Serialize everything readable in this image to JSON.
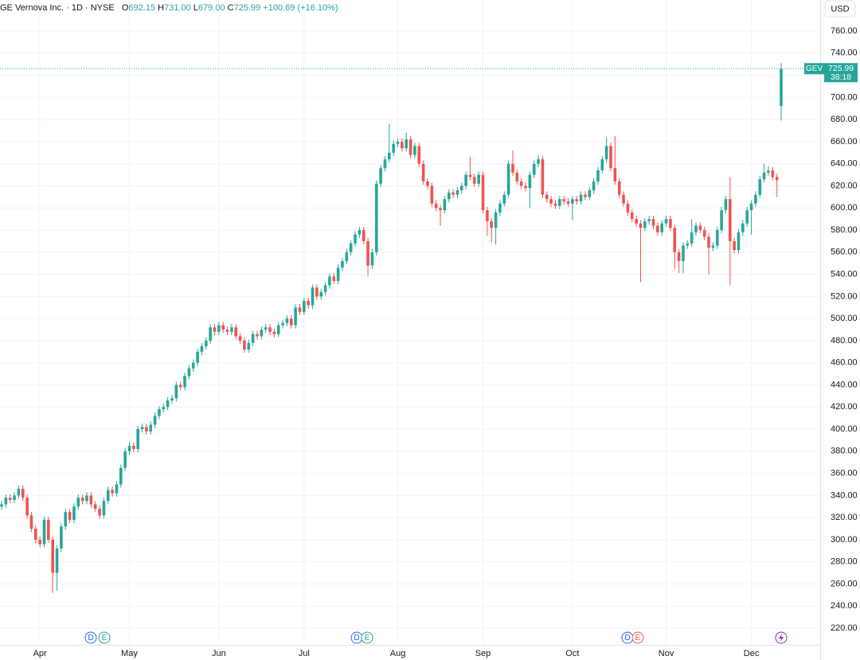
{
  "chart_data": {
    "type": "candlestick",
    "title": "GE Vernova Inc. · 1D · NYSE",
    "ohlc_labels": [
      "O",
      "H",
      "L",
      "C"
    ],
    "last_labels": [
      "692.15",
      "731.00",
      "679.00",
      "725.99"
    ],
    "change_label": "+100.69 (+16.10%)",
    "currency": "USD",
    "symbol": "GEV",
    "countdown": "38:18",
    "up_color": "#26a69a",
    "down_color": "#ef5350",
    "grid": true,
    "ylim": [
      204.9,
      788.1
    ],
    "yticks": [
      {
        "value": 220,
        "label": "220.00"
      },
      {
        "value": 240,
        "label": "240.00"
      },
      {
        "value": 260,
        "label": "260.00"
      },
      {
        "value": 280,
        "label": "280.00"
      },
      {
        "value": 300,
        "label": "300.00"
      },
      {
        "value": 320,
        "label": "320.00"
      },
      {
        "value": 340,
        "label": "340.00"
      },
      {
        "value": 360,
        "label": "360.00"
      },
      {
        "value": 380,
        "label": "380.00"
      },
      {
        "value": 400,
        "label": "400.00"
      },
      {
        "value": 420,
        "label": "420.00"
      },
      {
        "value": 440,
        "label": "440.00"
      },
      {
        "value": 460,
        "label": "460.00"
      },
      {
        "value": 480,
        "label": "480.00"
      },
      {
        "value": 500,
        "label": "500.00"
      },
      {
        "value": 520,
        "label": "520.00"
      },
      {
        "value": 540,
        "label": "540.00"
      },
      {
        "value": 560,
        "label": "560.00"
      },
      {
        "value": 580,
        "label": "580.00"
      },
      {
        "value": 600,
        "label": "600.00"
      },
      {
        "value": 620,
        "label": "620.00"
      },
      {
        "value": 640,
        "label": "640.00"
      },
      {
        "value": 660,
        "label": "660.00"
      },
      {
        "value": 680,
        "label": "680.00"
      },
      {
        "value": 700,
        "label": "700.00"
      },
      {
        "value": 720,
        "label": "720.00"
      },
      {
        "value": 740,
        "label": "740.00"
      },
      {
        "value": 760,
        "label": "760.00"
      }
    ],
    "events": [
      [
        "D",
        "E"
      ],
      [
        "D",
        "E"
      ],
      [
        "D",
        "E"
      ]
    ],
    "categories": [
      null,
      null,
      null,
      null,
      null,
      null,
      null,
      null,
      null,
      "Apr",
      null,
      null,
      null,
      null,
      null,
      null,
      null,
      null,
      null,
      null,
      null,
      null,
      null,
      null,
      null,
      null,
      null,
      null,
      null,
      null,
      "May",
      null,
      null,
      null,
      null,
      null,
      null,
      null,
      null,
      null,
      null,
      null,
      null,
      null,
      null,
      null,
      null,
      null,
      null,
      null,
      null,
      "Jun",
      null,
      null,
      null,
      null,
      null,
      null,
      null,
      null,
      null,
      null,
      null,
      null,
      null,
      null,
      null,
      null,
      null,
      null,
      null,
      "Jul",
      null,
      null,
      null,
      null,
      null,
      null,
      null,
      null,
      null,
      null,
      null,
      null,
      null,
      null,
      null,
      null,
      null,
      null,
      null,
      null,
      null,
      "Aug",
      null,
      null,
      null,
      null,
      null,
      null,
      null,
      null,
      null,
      null,
      null,
      null,
      null,
      null,
      null,
      null,
      null,
      null,
      null,
      "Sep",
      null,
      null,
      null,
      null,
      null,
      null,
      null,
      null,
      null,
      null,
      null,
      null,
      null,
      null,
      null,
      null,
      null,
      null,
      null,
      null,
      "Oct",
      null,
      null,
      null,
      null,
      null,
      null,
      null,
      null,
      null,
      null,
      null,
      null,
      null,
      null,
      null,
      null,
      null,
      null,
      null,
      null,
      null,
      "Nov",
      null,
      null,
      null,
      null,
      null,
      null,
      null,
      null,
      null,
      null,
      null,
      null,
      null,
      null,
      null,
      null,
      null,
      null,
      null,
      "Dec",
      null,
      null,
      null,
      null,
      null,
      null,
      null
    ],
    "open": [
      330,
      332,
      338,
      336,
      340,
      346,
      338,
      322,
      310,
      300,
      296,
      318,
      300,
      270,
      292,
      312,
      325,
      318,
      330,
      338,
      335,
      340,
      332,
      328,
      322,
      335,
      345,
      342,
      350,
      365,
      380,
      385,
      382,
      400,
      402,
      398,
      404,
      412,
      418,
      420,
      426,
      428,
      440,
      438,
      448,
      455,
      460,
      470,
      475,
      480,
      492,
      488,
      494,
      490,
      488,
      492,
      484,
      480,
      472,
      478,
      486,
      484,
      490,
      492,
      488,
      486,
      494,
      496,
      500,
      494,
      510,
      506,
      516,
      512,
      528,
      520,
      524,
      530,
      538,
      534,
      546,
      552,
      560,
      568,
      576,
      580,
      570,
      548,
      560,
      622,
      636,
      644,
      650,
      658,
      660,
      654,
      662,
      648,
      656,
      640,
      624,
      620,
      604,
      600,
      598,
      608,
      614,
      612,
      616,
      620,
      630,
      628,
      622,
      630,
      598,
      588,
      582,
      596,
      604,
      612,
      640,
      632,
      624,
      620,
      618,
      630,
      640,
      644,
      612,
      608,
      604,
      602,
      608,
      606,
      604,
      608,
      606,
      612,
      610,
      616,
      624,
      634,
      644,
      656,
      636,
      624,
      612,
      604,
      596,
      590,
      586,
      582,
      588,
      590,
      584,
      578,
      586,
      590,
      582,
      560,
      552,
      566,
      568,
      578,
      584,
      580,
      574,
      564,
      566,
      580,
      598,
      608,
      570,
      562,
      578,
      586,
      598,
      604,
      612,
      626,
      632,
      634,
      628,
      692.15
    ],
    "high": [
      335,
      341,
      341,
      343,
      349,
      349,
      341,
      325,
      313,
      303,
      321,
      321,
      303,
      295,
      315,
      328,
      328,
      333,
      341,
      341,
      343,
      343,
      335,
      331,
      338,
      348,
      348,
      353,
      368,
      383,
      388,
      388,
      403,
      405,
      405,
      407,
      415,
      421,
      423,
      429,
      431,
      443,
      443,
      451,
      458,
      463,
      473,
      478,
      483,
      495,
      495,
      497,
      497,
      493,
      495,
      495,
      487,
      483,
      481,
      489,
      489,
      493,
      495,
      495,
      491,
      497,
      499,
      503,
      503,
      513,
      513,
      519,
      519,
      531,
      531,
      527,
      533,
      541,
      541,
      549,
      555,
      563,
      571,
      579,
      583,
      583,
      573,
      563,
      625,
      639,
      647,
      676,
      661,
      663,
      663,
      668,
      665,
      659,
      659,
      643,
      627,
      623,
      607,
      603,
      611,
      617,
      617,
      619,
      623,
      633,
      646,
      631,
      633,
      633,
      601,
      591,
      599,
      607,
      615,
      643,
      652,
      635,
      627,
      623,
      633,
      643,
      648,
      647,
      615,
      611,
      607,
      611,
      611,
      609,
      611,
      611,
      615,
      615,
      619,
      627,
      637,
      647,
      664,
      659,
      665,
      627,
      615,
      607,
      599,
      593,
      589,
      591,
      593,
      593,
      587,
      589,
      593,
      593,
      585,
      563,
      569,
      571,
      590,
      587,
      587,
      583,
      577,
      569,
      583,
      601,
      611,
      628,
      573,
      581,
      589,
      601,
      607,
      615,
      629,
      640,
      638,
      637,
      631,
      731
    ],
    "low": [
      327,
      329,
      333,
      333,
      337,
      335,
      319,
      307,
      297,
      293,
      293,
      297,
      252,
      254,
      289,
      309,
      315,
      315,
      327,
      332,
      332,
      329,
      325,
      319,
      319,
      332,
      339,
      339,
      347,
      362,
      377,
      379,
      379,
      397,
      395,
      395,
      401,
      409,
      415,
      417,
      423,
      425,
      435,
      435,
      445,
      452,
      457,
      467,
      472,
      477,
      485,
      485,
      487,
      485,
      485,
      481,
      477,
      469,
      469,
      475,
      481,
      481,
      487,
      485,
      483,
      483,
      491,
      493,
      491,
      491,
      503,
      503,
      509,
      509,
      517,
      517,
      521,
      527,
      531,
      531,
      543,
      549,
      557,
      565,
      573,
      567,
      538,
      545,
      557,
      619,
      633,
      641,
      647,
      655,
      651,
      651,
      645,
      645,
      637,
      621,
      617,
      601,
      597,
      584,
      595,
      605,
      609,
      609,
      613,
      617,
      625,
      619,
      619,
      595,
      575,
      569,
      567,
      593,
      601,
      609,
      629,
      621,
      617,
      615,
      600,
      627,
      637,
      609,
      605,
      601,
      599,
      599,
      603,
      601,
      589,
      603,
      603,
      607,
      607,
      613,
      621,
      631,
      641,
      633,
      621,
      609,
      601,
      593,
      587,
      583,
      533,
      579,
      585,
      581,
      575,
      575,
      583,
      579,
      545,
      541,
      541,
      563,
      565,
      575,
      577,
      571,
      540,
      561,
      563,
      577,
      595,
      530,
      559,
      559,
      575,
      583,
      576,
      601,
      609,
      623,
      629,
      625,
      610,
      679
    ],
    "close": [
      332,
      338,
      336,
      340,
      346,
      338,
      322,
      310,
      300,
      296,
      318,
      300,
      270,
      292,
      312,
      325,
      318,
      330,
      338,
      335,
      340,
      332,
      328,
      322,
      335,
      345,
      342,
      350,
      365,
      380,
      385,
      382,
      400,
      402,
      398,
      404,
      412,
      418,
      420,
      426,
      428,
      440,
      438,
      448,
      455,
      460,
      470,
      475,
      480,
      492,
      488,
      494,
      490,
      488,
      492,
      484,
      480,
      472,
      478,
      486,
      484,
      490,
      492,
      488,
      486,
      494,
      496,
      500,
      494,
      510,
      506,
      516,
      512,
      528,
      520,
      524,
      530,
      538,
      534,
      546,
      552,
      560,
      568,
      576,
      580,
      570,
      548,
      560,
      622,
      636,
      644,
      650,
      658,
      660,
      654,
      662,
      648,
      656,
      640,
      624,
      620,
      604,
      600,
      598,
      608,
      614,
      612,
      616,
      620,
      630,
      628,
      622,
      630,
      598,
      588,
      582,
      596,
      604,
      612,
      640,
      632,
      624,
      620,
      618,
      630,
      640,
      644,
      612,
      608,
      604,
      602,
      608,
      606,
      604,
      608,
      606,
      612,
      610,
      616,
      624,
      634,
      644,
      656,
      636,
      624,
      612,
      604,
      596,
      590,
      586,
      582,
      588,
      590,
      584,
      578,
      586,
      590,
      582,
      560,
      552,
      566,
      568,
      578,
      584,
      580,
      574,
      564,
      566,
      580,
      598,
      608,
      570,
      562,
      578,
      586,
      598,
      604,
      612,
      626,
      632,
      634,
      628,
      625.3,
      725.99
    ]
  }
}
